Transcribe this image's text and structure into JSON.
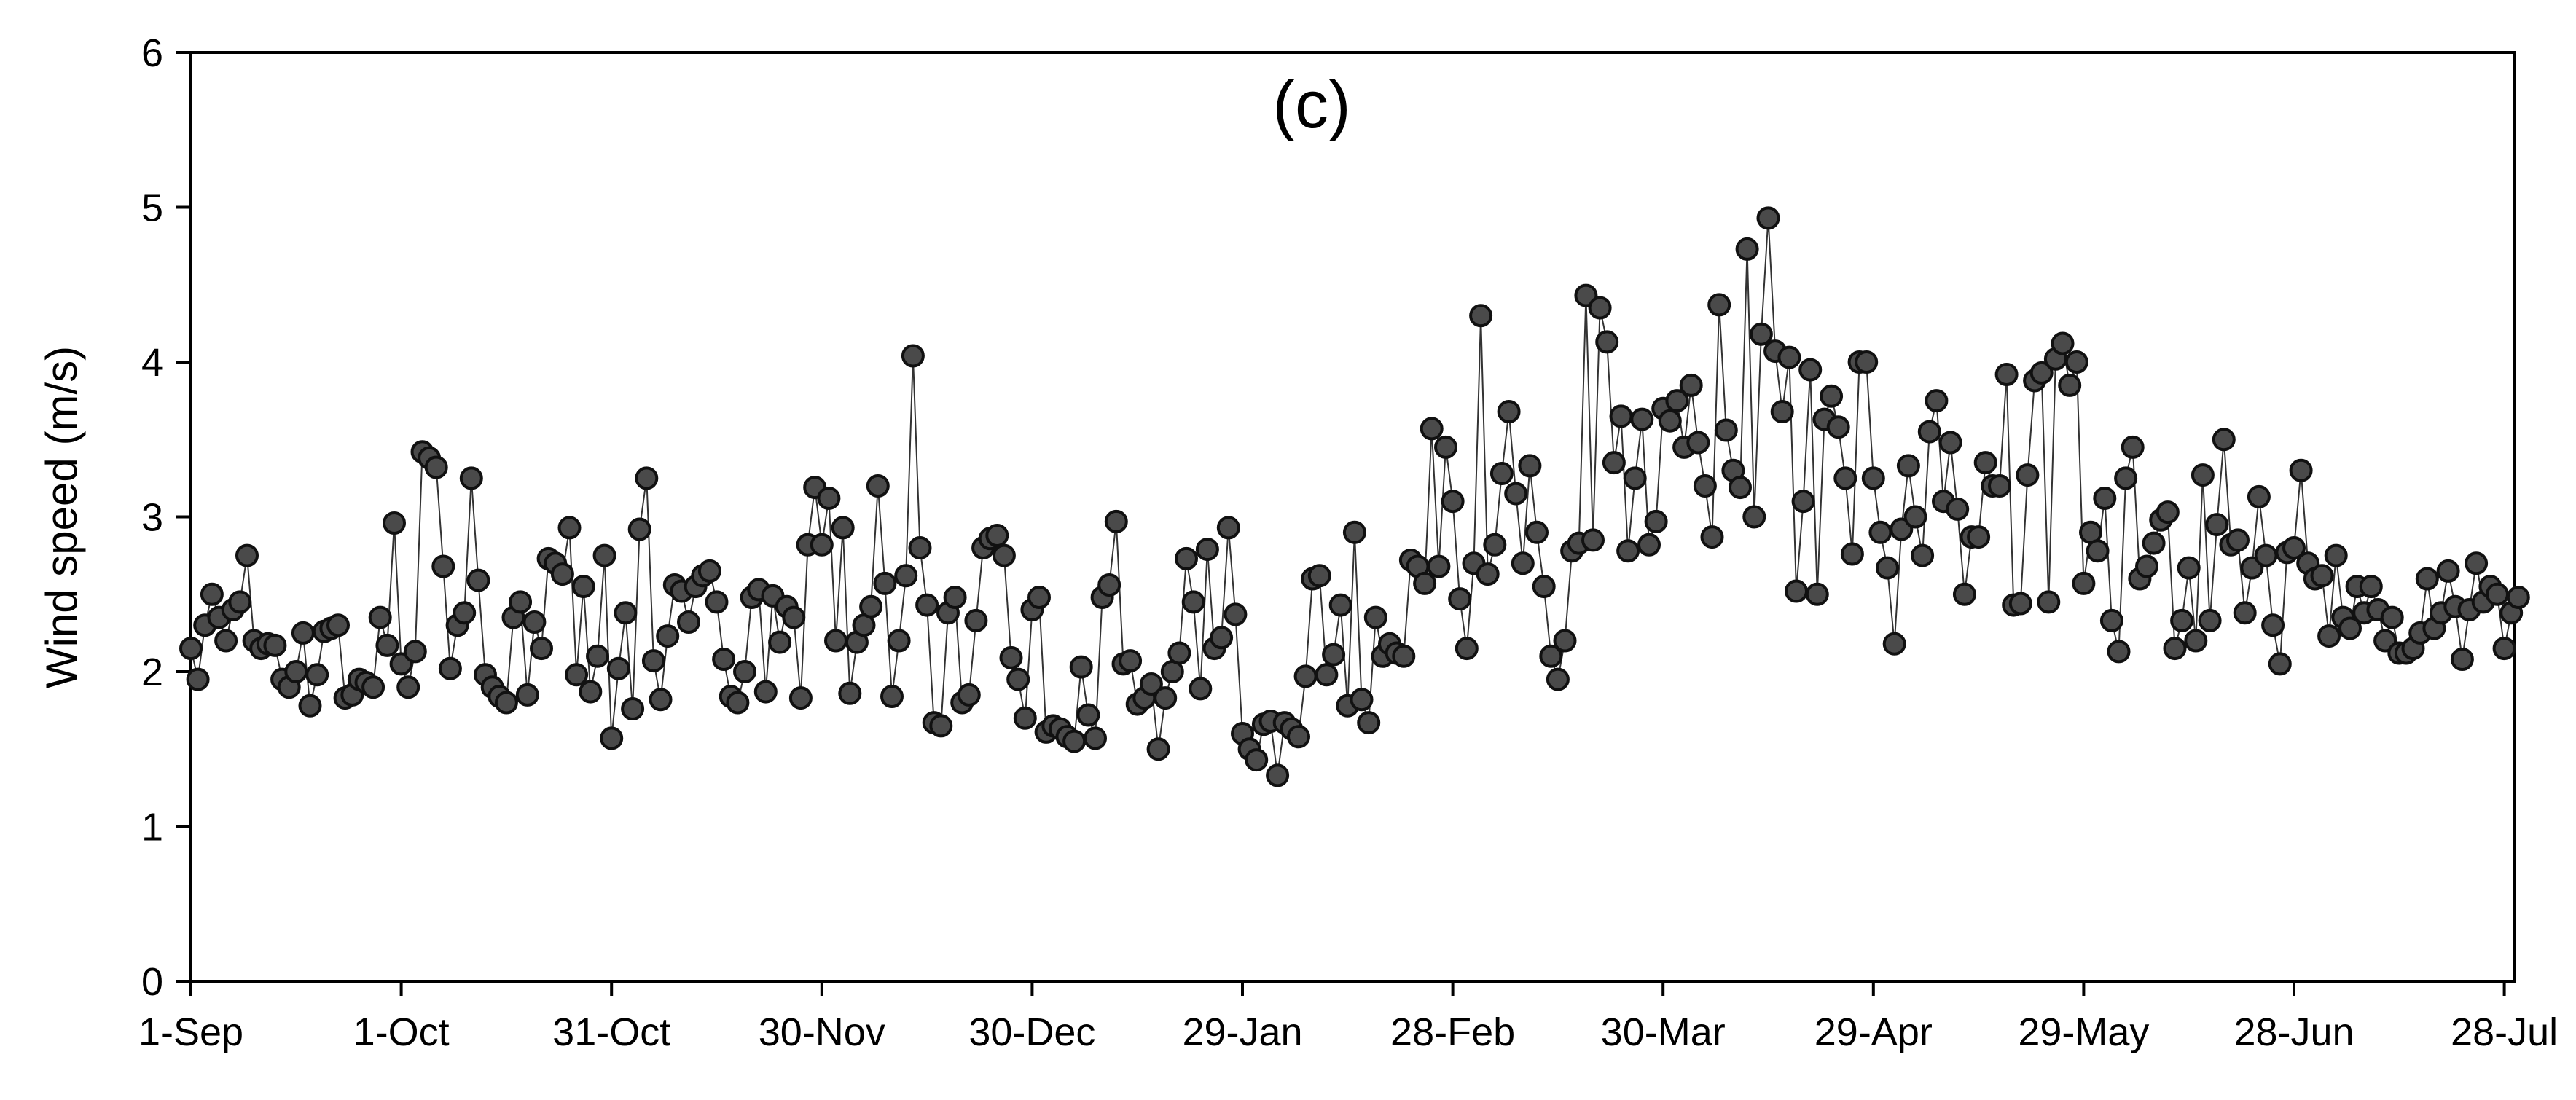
{
  "chart_data": {
    "type": "line",
    "panel_label": "(c)",
    "title": "",
    "xlabel": "",
    "ylabel": "Wind speed (m/s)",
    "ylim": [
      0,
      6
    ],
    "yticks": [
      0,
      1,
      2,
      3,
      4,
      5,
      6
    ],
    "x_start": "1-Sep",
    "xtick_labels": [
      "1-Sep",
      "1-Oct",
      "31-Oct",
      "30-Nov",
      "30-Dec",
      "29-Jan",
      "28-Feb",
      "30-Mar",
      "29-Apr",
      "29-May",
      "28-Jun",
      "28-Jul"
    ],
    "grid": false,
    "marker": "circle",
    "marker_color": "#4a4a4a",
    "line_color": "#333333",
    "series": [
      {
        "values": [
          2.15,
          1.95,
          2.3,
          2.5,
          2.35,
          2.2,
          2.4,
          2.45,
          2.75,
          2.2,
          2.15,
          2.18,
          2.17,
          1.95,
          1.9,
          2.0,
          2.25,
          1.78,
          1.98,
          2.26,
          2.28,
          2.3,
          1.83,
          1.85,
          1.95,
          1.93,
          1.9,
          2.35,
          2.17,
          2.96,
          2.05,
          1.9,
          2.13,
          3.42,
          3.38,
          3.32,
          2.68,
          2.02,
          2.3,
          2.38,
          3.25,
          2.59,
          1.98,
          1.9,
          1.84,
          1.8,
          2.35,
          2.45,
          1.85,
          2.32,
          2.15,
          2.73,
          2.7,
          2.63,
          2.93,
          1.98,
          2.55,
          1.87,
          2.1,
          2.75,
          1.57,
          2.02,
          2.38,
          1.76,
          2.92,
          3.25,
          2.07,
          1.82,
          2.23,
          2.56,
          2.52,
          2.32,
          2.55,
          2.62,
          2.65,
          2.45,
          2.08,
          1.84,
          1.8,
          2.0,
          2.48,
          2.53,
          1.87,
          2.49,
          2.19,
          2.42,
          2.35,
          1.83,
          2.82,
          3.19,
          2.82,
          3.12,
          2.2,
          2.93,
          1.86,
          2.19,
          2.3,
          2.42,
          3.2,
          2.57,
          1.84,
          2.2,
          2.62,
          4.04,
          2.8,
          2.43,
          1.67,
          1.65,
          2.38,
          2.48,
          1.8,
          1.85,
          2.33,
          2.8,
          2.86,
          2.88,
          2.75,
          2.09,
          1.95,
          1.7,
          2.4,
          2.48,
          1.61,
          1.65,
          1.63,
          1.58,
          1.55,
          2.03,
          1.72,
          1.57,
          2.48,
          2.56,
          2.97,
          2.05,
          2.07,
          1.79,
          1.83,
          1.92,
          1.5,
          1.83,
          2.0,
          2.12,
          2.73,
          2.45,
          1.89,
          2.79,
          2.15,
          2.22,
          2.93,
          2.37,
          1.6,
          1.5,
          1.43,
          1.66,
          1.68,
          1.33,
          1.67,
          1.63,
          1.58,
          1.97,
          2.6,
          2.62,
          1.98,
          2.11,
          2.43,
          1.78,
          2.9,
          1.82,
          1.67,
          2.35,
          2.1,
          2.18,
          2.12,
          2.1,
          2.72,
          2.68,
          2.57,
          3.57,
          2.68,
          3.45,
          3.1,
          2.47,
          2.15,
          2.7,
          4.3,
          2.63,
          2.82,
          3.28,
          3.68,
          3.15,
          2.7,
          3.33,
          2.9,
          2.55,
          2.1,
          1.95,
          2.2,
          2.78,
          2.83,
          4.43,
          2.85,
          4.35,
          4.13,
          3.35,
          3.65,
          2.78,
          3.25,
          3.63,
          2.82,
          2.97,
          3.7,
          3.62,
          3.75,
          3.45,
          3.85,
          3.48,
          3.2,
          2.87,
          4.37,
          3.56,
          3.3,
          3.19,
          4.73,
          3.0,
          4.18,
          4.93,
          4.07,
          3.68,
          4.03,
          2.52,
          3.1,
          3.95,
          2.5,
          3.63,
          3.78,
          3.58,
          3.25,
          2.76,
          4.0,
          4.0,
          3.25,
          2.9,
          2.67,
          2.18,
          2.92,
          3.33,
          3.0,
          2.75,
          3.55,
          3.75,
          3.1,
          3.48,
          3.05,
          2.5,
          2.87,
          2.87,
          3.35,
          3.2,
          3.2,
          3.92,
          2.43,
          2.44,
          3.27,
          3.88,
          3.93,
          2.45,
          4.02,
          4.12,
          3.85,
          4.0,
          2.57,
          2.9,
          2.78,
          3.12,
          2.33,
          2.13,
          3.25,
          3.45,
          2.6,
          2.68,
          2.83,
          2.98,
          3.03,
          2.15,
          2.33,
          2.67,
          2.2,
          3.27,
          2.33,
          2.95,
          3.5,
          2.82,
          2.85,
          2.38,
          2.67,
          3.13,
          2.75,
          2.3,
          2.05,
          2.77,
          2.8,
          3.3,
          2.7,
          2.6,
          2.62,
          2.23,
          2.75,
          2.35,
          2.28,
          2.55,
          2.38,
          2.55,
          2.4,
          2.2,
          2.35,
          2.12,
          2.12,
          2.15,
          2.25,
          2.6,
          2.28,
          2.38,
          2.65,
          2.42,
          2.08,
          2.4,
          2.7,
          2.45,
          2.55,
          2.5,
          2.15,
          2.38,
          2.48
        ]
      }
    ]
  }
}
